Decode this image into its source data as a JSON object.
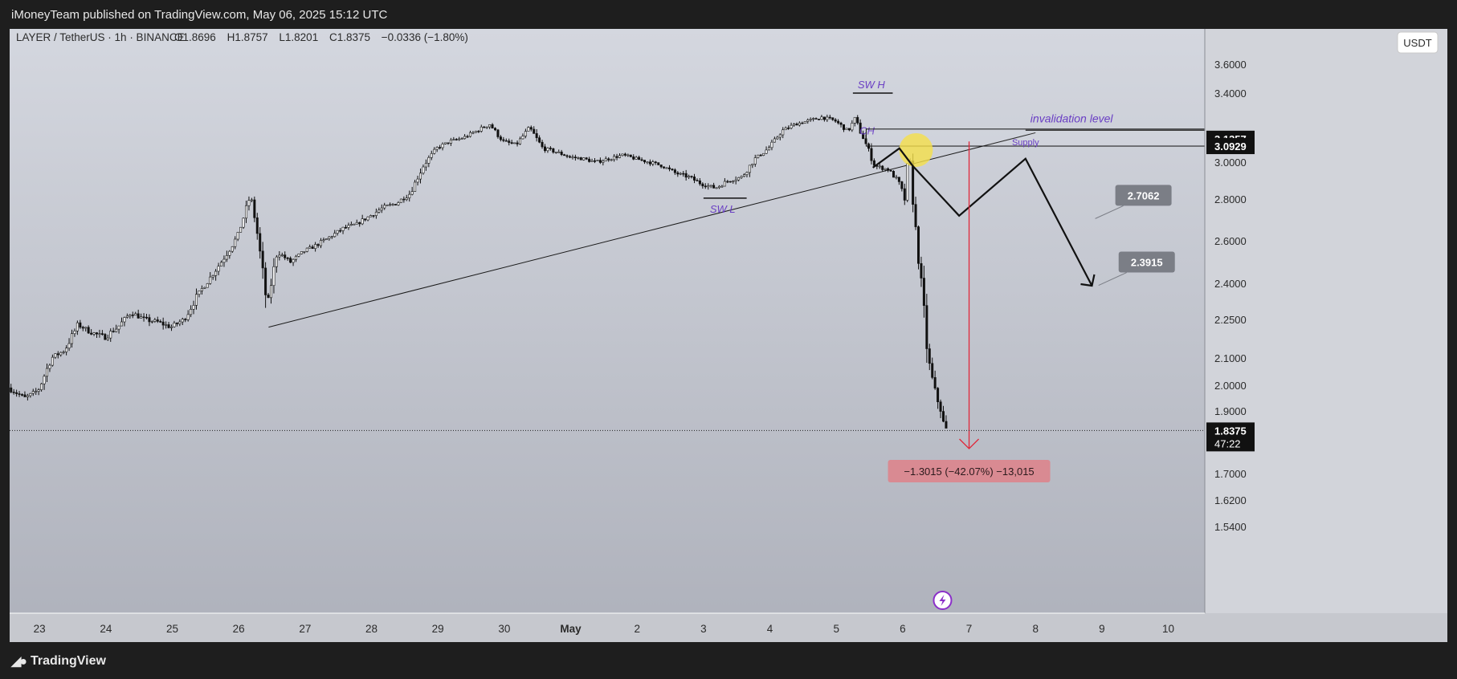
{
  "publish_line": "iMoneyTeam published on TradingView.com, May 06, 2025 15:12 UTC",
  "footer": {
    "brand": "TradingView",
    "logo_icon": "tradingview-logo-icon"
  },
  "currency_button": "USDT",
  "colors": {
    "frame_bg": "#1e1e1e",
    "annotation_purple": "#6a3fc4",
    "target_red": "#e0273a",
    "price_tag_gray": "#7b7e86",
    "highlight_yellow": "#f5e04a"
  },
  "chart_data": {
    "type": "candlestick",
    "symbol": "LAYER / TetherUS · 1h · BINANCE",
    "ohlc": {
      "o_label": "O",
      "o": "1.8696",
      "h_label": "H",
      "h": "1.8757",
      "l_label": "L",
      "l": "1.8201",
      "c_label": "C",
      "c": "1.8375",
      "change": "−0.0336 (−1.80%)"
    },
    "x_ticks": [
      {
        "x": 23,
        "label": "23",
        "bold": false
      },
      {
        "x": 24,
        "label": "24",
        "bold": false
      },
      {
        "x": 25,
        "label": "25",
        "bold": false
      },
      {
        "x": 26,
        "label": "26",
        "bold": false
      },
      {
        "x": 27,
        "label": "27",
        "bold": false
      },
      {
        "x": 28,
        "label": "28",
        "bold": false
      },
      {
        "x": 29,
        "label": "29",
        "bold": false
      },
      {
        "x": 30,
        "label": "30",
        "bold": false
      },
      {
        "x": 31,
        "label": "May",
        "bold": true
      },
      {
        "x": 32,
        "label": "2",
        "bold": false
      },
      {
        "x": 33,
        "label": "3",
        "bold": false
      },
      {
        "x": 34,
        "label": "4",
        "bold": false
      },
      {
        "x": 35,
        "label": "5",
        "bold": false
      },
      {
        "x": 36,
        "label": "6",
        "bold": false
      },
      {
        "x": 37,
        "label": "7",
        "bold": false
      },
      {
        "x": 38,
        "label": "8",
        "bold": false
      },
      {
        "x": 39,
        "label": "9",
        "bold": false
      },
      {
        "x": 40,
        "label": "10",
        "bold": false
      }
    ],
    "y_ticks": [
      "3.6000",
      "3.4000",
      "3.0000",
      "2.8000",
      "2.6000",
      "2.4000",
      "2.2500",
      "2.1000",
      "2.0000",
      "1.9000",
      "1.7000",
      "1.6200",
      "1.5400"
    ],
    "y_range": [
      1.5,
      3.7
    ],
    "x_range": [
      22.55,
      40.55
    ],
    "price_path": [
      [
        22.55,
        1.99
      ],
      [
        22.8,
        1.95
      ],
      [
        23.0,
        1.98
      ],
      [
        23.2,
        2.1
      ],
      [
        23.4,
        2.13
      ],
      [
        23.6,
        2.23
      ],
      [
        23.8,
        2.2
      ],
      [
        24.0,
        2.18
      ],
      [
        24.2,
        2.22
      ],
      [
        24.4,
        2.28
      ],
      [
        24.6,
        2.25
      ],
      [
        24.8,
        2.24
      ],
      [
        25.0,
        2.22
      ],
      [
        25.2,
        2.25
      ],
      [
        25.4,
        2.35
      ],
      [
        25.6,
        2.43
      ],
      [
        25.8,
        2.52
      ],
      [
        26.0,
        2.62
      ],
      [
        26.2,
        2.82
      ],
      [
        26.28,
        2.68
      ],
      [
        26.45,
        2.3
      ],
      [
        26.6,
        2.55
      ],
      [
        26.8,
        2.5
      ],
      [
        27.0,
        2.55
      ],
      [
        27.2,
        2.58
      ],
      [
        27.4,
        2.62
      ],
      [
        27.6,
        2.66
      ],
      [
        27.8,
        2.68
      ],
      [
        28.0,
        2.72
      ],
      [
        28.2,
        2.76
      ],
      [
        28.4,
        2.78
      ],
      [
        28.6,
        2.83
      ],
      [
        28.8,
        2.98
      ],
      [
        29.0,
        3.08
      ],
      [
        29.2,
        3.12
      ],
      [
        29.4,
        3.14
      ],
      [
        29.6,
        3.18
      ],
      [
        29.8,
        3.22
      ],
      [
        30.0,
        3.12
      ],
      [
        30.2,
        3.1
      ],
      [
        30.4,
        3.2
      ],
      [
        30.6,
        3.08
      ],
      [
        30.8,
        3.06
      ],
      [
        31.0,
        3.03
      ],
      [
        31.2,
        3.02
      ],
      [
        31.4,
        3.0
      ],
      [
        31.6,
        3.02
      ],
      [
        31.8,
        3.04
      ],
      [
        32.0,
        3.02
      ],
      [
        32.2,
        3.0
      ],
      [
        32.4,
        2.98
      ],
      [
        32.6,
        2.94
      ],
      [
        32.8,
        2.92
      ],
      [
        33.0,
        2.88
      ],
      [
        33.2,
        2.86
      ],
      [
        33.4,
        2.9
      ],
      [
        33.6,
        2.92
      ],
      [
        33.8,
        3.02
      ],
      [
        34.0,
        3.08
      ],
      [
        34.2,
        3.18
      ],
      [
        34.4,
        3.22
      ],
      [
        34.6,
        3.24
      ],
      [
        34.8,
        3.26
      ],
      [
        35.0,
        3.24
      ],
      [
        35.2,
        3.18
      ],
      [
        35.3,
        3.25
      ],
      [
        35.45,
        3.12
      ],
      [
        35.6,
        2.98
      ],
      [
        35.8,
        2.96
      ],
      [
        35.95,
        2.9
      ],
      [
        36.05,
        2.8
      ],
      [
        36.12,
        3.06
      ],
      [
        36.2,
        2.7
      ],
      [
        36.3,
        2.4
      ],
      [
        36.4,
        2.1
      ],
      [
        36.5,
        1.98
      ],
      [
        36.6,
        1.9
      ],
      [
        36.65,
        1.84
      ]
    ],
    "trendline": {
      "x1": 26.45,
      "y1": 2.22,
      "x2": 38.0,
      "y2": 3.17
    },
    "swing_high": {
      "label": "SW H",
      "x1": 35.25,
      "x2": 35.85,
      "y": 3.4
    },
    "swing_low": {
      "label": "SW L",
      "x1": 33.0,
      "x2": 33.65,
      "y": 2.805
    },
    "choch_label": "CH",
    "invalidation": {
      "label": "invalidation level",
      "x1": 37.85,
      "x2": 40.55,
      "y": 3.25
    },
    "supply_zone": {
      "label": "Supply",
      "top": 3.1357,
      "bottom": 3.0929,
      "x_start": 35.45
    },
    "projection_path": [
      [
        35.55,
        2.97
      ],
      [
        35.95,
        3.08
      ],
      [
        36.15,
        2.98
      ],
      [
        36.85,
        2.72
      ],
      [
        37.85,
        3.02
      ],
      [
        38.85,
        2.39
      ]
    ],
    "highlight_circle": {
      "x": 36.2,
      "y": 3.07
    },
    "measure": {
      "x": 37.0,
      "from": 3.12,
      "to": 1.8,
      "label": "−1.3015 (−42.07%) −13,015"
    },
    "current_price": {
      "value": 1.8375,
      "label": "1.8375",
      "countdown": "47:22"
    },
    "axis_price_labels": [
      {
        "value": 3.1357,
        "label": "3.1357"
      },
      {
        "value": 3.0929,
        "label": "3.0929"
      }
    ],
    "targets": [
      {
        "label": "2.7062",
        "x": 38.9,
        "y": 2.7062
      },
      {
        "label": "2.3915",
        "x": 38.95,
        "y": 2.3915
      }
    ],
    "event_icon": "lightning-bolt-icon"
  }
}
